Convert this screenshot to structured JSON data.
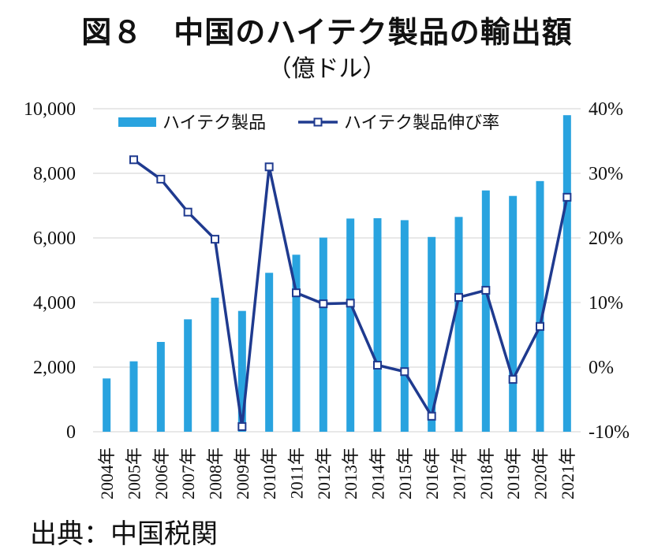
{
  "header": {
    "title": "図８　中国のハイテク製品の輸出額",
    "subtitle": "（億ドル）"
  },
  "footer": {
    "source": "出典：中国税関"
  },
  "chart_data": {
    "type": "bar",
    "categories": [
      "2004年",
      "2005年",
      "2006年",
      "2007年",
      "2008年",
      "2009年",
      "2010年",
      "2011年",
      "2012年",
      "2013年",
      "2014年",
      "2015年",
      "2016年",
      "2017年",
      "2018年",
      "2019年",
      "2020年",
      "2021年"
    ],
    "series": [
      {
        "name": "ハイテク製品",
        "type": "bar",
        "axis": "left",
        "color": "#29a3df",
        "values": [
          1650,
          2180,
          2780,
          3480,
          4150,
          3740,
          4920,
          5480,
          6010,
          6600,
          6610,
          6550,
          6030,
          6650,
          7470,
          7300,
          7760,
          9800
        ]
      },
      {
        "name": "ハイテク製品伸び率",
        "type": "line",
        "axis": "right",
        "color": "#1f3a8f",
        "values": [
          null,
          32.1,
          29.1,
          24.0,
          19.8,
          -9.2,
          31.0,
          11.5,
          9.8,
          9.9,
          0.3,
          -0.7,
          -7.6,
          10.8,
          11.9,
          -1.9,
          6.3,
          26.3
        ]
      }
    ],
    "yleft": {
      "ylim": [
        0,
        10000
      ],
      "ticks": [
        "0",
        "2,000",
        "4,000",
        "6,000",
        "8,000",
        "10,000"
      ]
    },
    "yright": {
      "ylim": [
        -10,
        40
      ],
      "ticks": [
        "-10%",
        "0%",
        "10%",
        "20%",
        "30%",
        "40%"
      ]
    },
    "grid": "horizontal",
    "legend": "top"
  }
}
